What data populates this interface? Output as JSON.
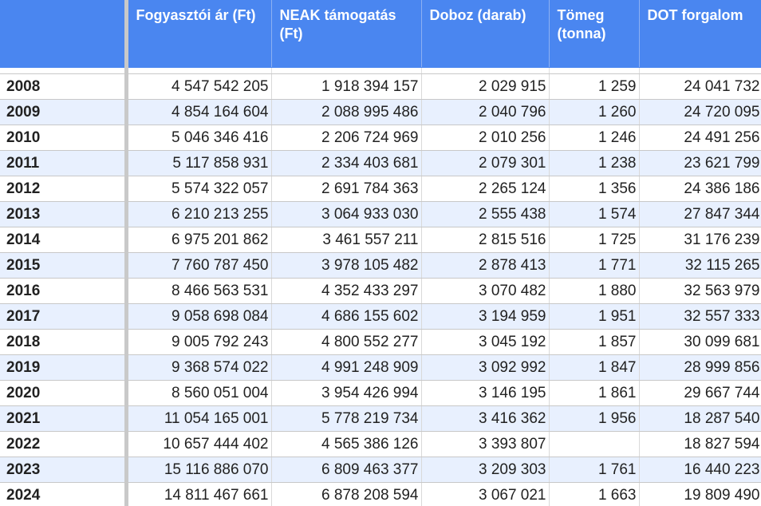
{
  "headers": [
    "",
    "Fogyasztói ár (Ft)",
    "NEAK támogatás (Ft)",
    "Doboz (darab)",
    "Tömeg (tonna)",
    "DOT forgalom"
  ],
  "rows": [
    {
      "year": "2008",
      "cells": [
        "4 547 542 205",
        "1 918 394 157",
        "2 029 915",
        "1 259",
        "24 041 732"
      ]
    },
    {
      "year": "2009",
      "cells": [
        "4 854 164 604",
        "2 088 995 486",
        "2 040 796",
        "1 260",
        "24 720 095"
      ]
    },
    {
      "year": "2010",
      "cells": [
        "5 046 346 416",
        "2 206 724 969",
        "2 010 256",
        "1 246",
        "24 491 256"
      ]
    },
    {
      "year": "2011",
      "cells": [
        "5 117 858 931",
        "2 334 403 681",
        "2 079 301",
        "1 238",
        "23 621 799"
      ]
    },
    {
      "year": "2012",
      "cells": [
        "5 574 322 057",
        "2 691 784 363",
        "2 265 124",
        "1 356",
        "24 386 186"
      ]
    },
    {
      "year": "2013",
      "cells": [
        "6 210 213 255",
        "3 064 933 030",
        "2 555 438",
        "1 574",
        "27 847 344"
      ]
    },
    {
      "year": "2014",
      "cells": [
        "6 975 201 862",
        "3 461 557 211",
        "2 815 516",
        "1 725",
        "31 176 239"
      ]
    },
    {
      "year": "2015",
      "cells": [
        "7 760 787 450",
        "3 978 105 482",
        "2 878 413",
        "1 771",
        "32 115 265"
      ]
    },
    {
      "year": "2016",
      "cells": [
        "8 466 563 531",
        "4 352 433 297",
        "3 070 482",
        "1 880",
        "32 563 979"
      ]
    },
    {
      "year": "2017",
      "cells": [
        "9 058 698 084",
        "4 686 155 602",
        "3 194 959",
        "1 951",
        "32 557 333"
      ]
    },
    {
      "year": "2018",
      "cells": [
        "9 005 792 243",
        "4 800 552 277",
        "3 045 192",
        "1 857",
        "30 099 681"
      ]
    },
    {
      "year": "2019",
      "cells": [
        "9 368 574 022",
        "4 991 248 909",
        "3 092 992",
        "1 847",
        "28 999 856"
      ]
    },
    {
      "year": "2020",
      "cells": [
        "8 560 051 004",
        "3 954 426 994",
        "3 146 195",
        "1 861",
        "29 667 744"
      ]
    },
    {
      "year": "2021",
      "cells": [
        "11 054 165 001",
        "5 778 219 734",
        "3 416 362",
        "1 956",
        "18 287 540"
      ]
    },
    {
      "year": "2022",
      "cells": [
        "10 657 444 402",
        "4 565 386 126",
        "3 393 807",
        "",
        "18 827 594"
      ]
    },
    {
      "year": "2023",
      "cells": [
        "15 116 886 070",
        "6 809 463 377",
        "3 209 303",
        "1 761",
        "16 440 223"
      ]
    },
    {
      "year": "2024",
      "cells": [
        "14 811 467 661",
        "6 878 208 594",
        "3 067 021",
        "1 663",
        "19 809 490"
      ]
    }
  ],
  "colors": {
    "header_bg": "#4a86f0",
    "header_text": "#ffffff",
    "band_row": "#e8f0fe",
    "plain_row": "#ffffff",
    "frozen_divider": "#c9c9c9"
  }
}
